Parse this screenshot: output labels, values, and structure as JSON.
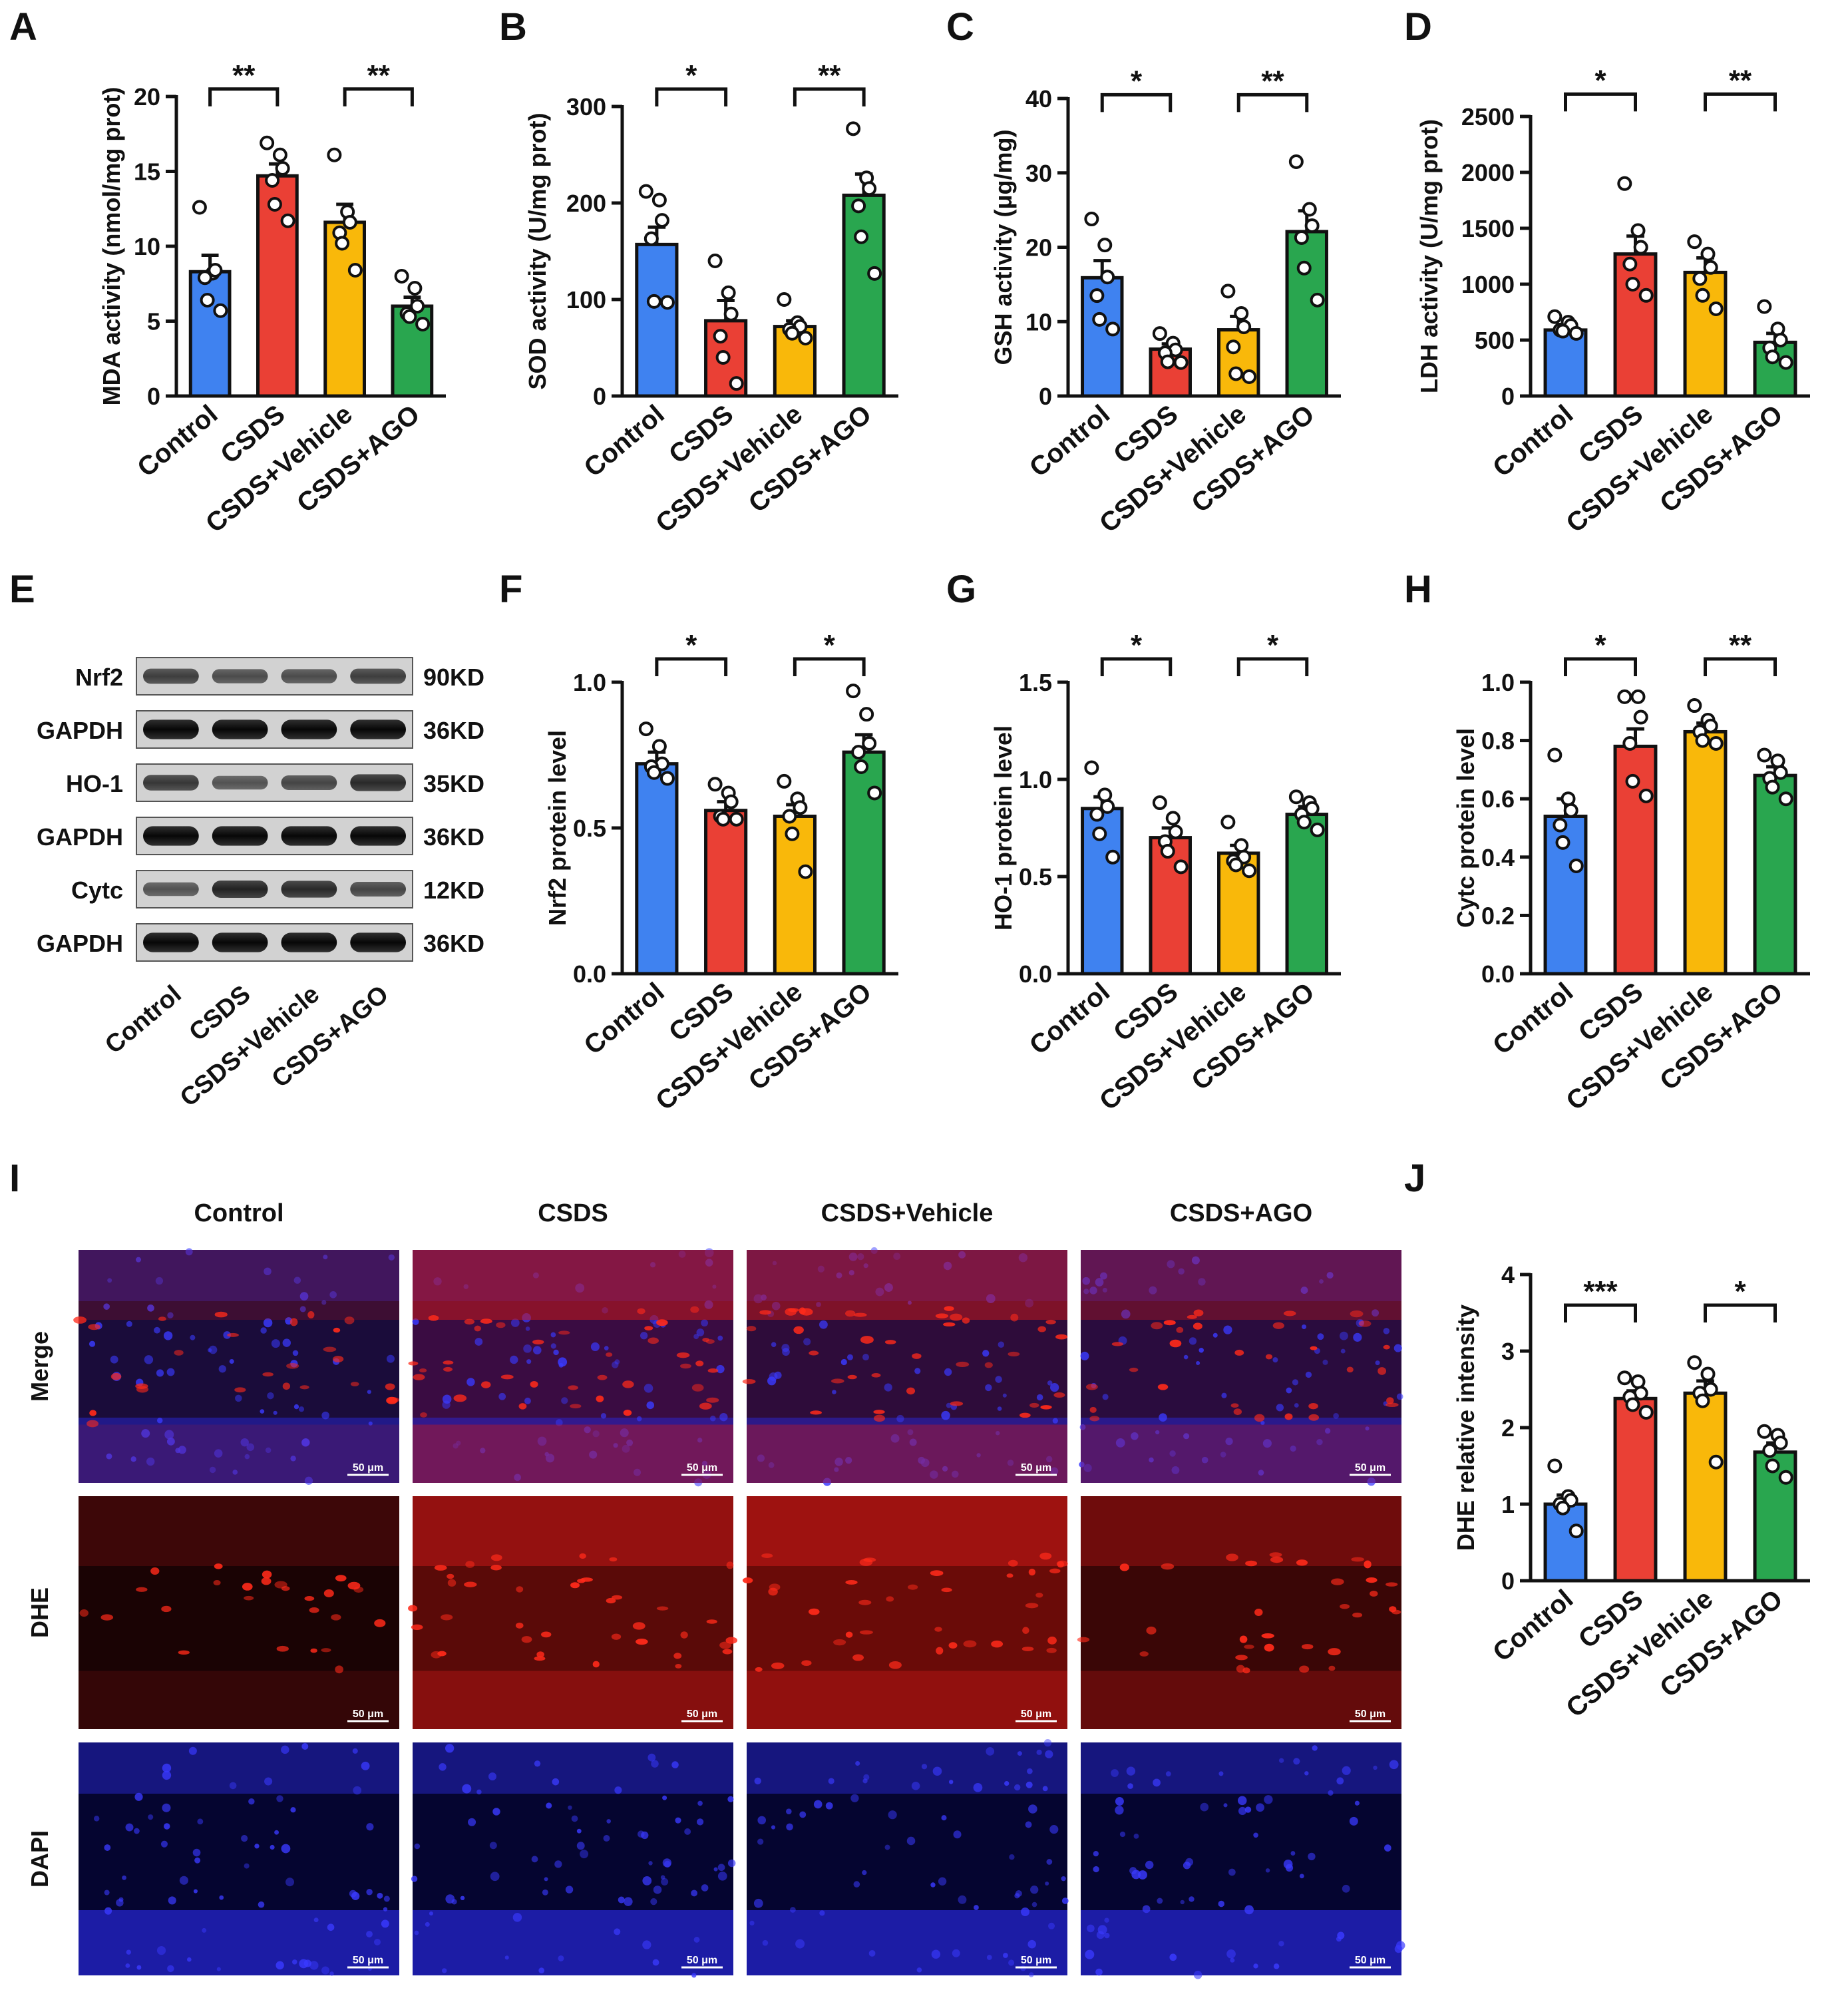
{
  "colors": {
    "control": "#3f82f0",
    "csds": "#ea4035",
    "vehicle": "#f9b80a",
    "ago": "#29a64f",
    "axis": "#111111"
  },
  "panel_letters": [
    "A",
    "B",
    "C",
    "D",
    "E",
    "F",
    "G",
    "H",
    "I",
    "J"
  ],
  "groups": [
    "Control",
    "CSDS",
    "CSDS+Vehicle",
    "CSDS+AGO"
  ],
  "western_blot": {
    "rows": [
      {
        "protein": "Nrf2",
        "size": "90KD"
      },
      {
        "protein": "GAPDH",
        "size": "36KD"
      },
      {
        "protein": "HO-1",
        "size": "35KD"
      },
      {
        "protein": "GAPDH",
        "size": "36KD"
      },
      {
        "protein": "Cytc",
        "size": "12KD"
      },
      {
        "protein": "GAPDH",
        "size": "36KD"
      }
    ],
    "lanes": [
      "Control",
      "CSDS",
      "CSDS+Vehicle",
      "CSDS+AGO"
    ]
  },
  "microscopy": {
    "columns": [
      "Control",
      "CSDS",
      "CSDS+Vehicle",
      "CSDS+AGO"
    ],
    "rows": [
      "Merge",
      "DHE",
      "DAPI"
    ],
    "scale_bar": "50 μm"
  },
  "chart_data": [
    {
      "panel": "A",
      "type": "bar",
      "categories": [
        "Control",
        "CSDS",
        "CSDS+Vehicle",
        "CSDS+AGO"
      ],
      "values": [
        8.3,
        14.7,
        11.6,
        6.0
      ],
      "errors": [
        1.1,
        0.8,
        1.2,
        0.6
      ],
      "points": [
        [
          12.6,
          8.2,
          8.4,
          7.9,
          6.4,
          5.7
        ],
        [
          16.9,
          16.1,
          15.2,
          14.4,
          12.8,
          11.7
        ],
        [
          16.1,
          12.3,
          11.6,
          10.9,
          10.2,
          8.4
        ],
        [
          8.0,
          7.2,
          6.0,
          5.5,
          5.3,
          4.8
        ]
      ],
      "ylabel": "MDA activity (nmol/mg prot)",
      "ylim": [
        0,
        20
      ],
      "yticks": [
        0,
        5,
        10,
        15,
        20
      ],
      "significance": [
        {
          "from": 0,
          "to": 1,
          "label": "**",
          "y": 20.5
        },
        {
          "from": 2,
          "to": 3,
          "label": "**",
          "y": 20.5
        }
      ]
    },
    {
      "panel": "B",
      "type": "bar",
      "categories": [
        "Control",
        "CSDS",
        "CSDS+Vehicle",
        "CSDS+AGO"
      ],
      "values": [
        157,
        78,
        72,
        208
      ],
      "errors": [
        18,
        21,
        6,
        22
      ],
      "points": [
        [
          212,
          203,
          182,
          163,
          98,
          97
        ],
        [
          140,
          107,
          85,
          62,
          40,
          13
        ],
        [
          100,
          76,
          72,
          69,
          65,
          60
        ],
        [
          277,
          226,
          215,
          197,
          165,
          127
        ]
      ],
      "ylabel": "SOD activity (U/mg prot)",
      "ylim": [
        0,
        300
      ],
      "yticks": [
        0,
        100,
        200,
        300
      ],
      "significance": [
        {
          "from": 0,
          "to": 1,
          "label": "*",
          "y": 318
        },
        {
          "from": 2,
          "to": 3,
          "label": "**",
          "y": 318
        }
      ]
    },
    {
      "panel": "C",
      "type": "bar",
      "categories": [
        "Control",
        "CSDS",
        "CSDS+Vehicle",
        "CSDS+AGO"
      ],
      "values": [
        15.9,
        6.3,
        8.9,
        22.1
      ],
      "errors": [
        2.3,
        0.7,
        1.8,
        2.8
      ],
      "points": [
        [
          23.8,
          20.3,
          16.0,
          13.5,
          10.3,
          9.0
        ],
        [
          8.4,
          7.1,
          6.2,
          5.8,
          4.6,
          4.5
        ],
        [
          14.1,
          11.1,
          9.3,
          6.6,
          3.0,
          2.6
        ],
        [
          31.5,
          25.1,
          22.9,
          21.3,
          17.2,
          12.9
        ]
      ],
      "ylabel": "GSH activity (μg/mg)",
      "ylim": [
        0,
        40
      ],
      "yticks": [
        0,
        10,
        20,
        30,
        40
      ],
      "significance": [
        {
          "from": 0,
          "to": 1,
          "label": "*",
          "y": 40.5
        },
        {
          "from": 2,
          "to": 3,
          "label": "**",
          "y": 40.5
        }
      ]
    },
    {
      "panel": "D",
      "type": "bar",
      "categories": [
        "Control",
        "CSDS",
        "CSDS+Vehicle",
        "CSDS+AGO"
      ],
      "values": [
        590,
        1270,
        1105,
        480
      ],
      "errors": [
        45,
        160,
        130,
        80
      ],
      "points": [
        [
          710,
          660,
          630,
          590,
          580,
          560
        ],
        [
          1900,
          1480,
          1330,
          1180,
          1000,
          900
        ],
        [
          1380,
          1270,
          1150,
          1050,
          900,
          780
        ],
        [
          800,
          600,
          500,
          430,
          350,
          300
        ]
      ],
      "ylabel": "LDH activity (U/mg prot)",
      "ylim": [
        0,
        2500
      ],
      "yticks": [
        0,
        500,
        1000,
        1500,
        2000,
        2500
      ],
      "significance": [
        {
          "from": 0,
          "to": 1,
          "label": "*",
          "y": 2700
        },
        {
          "from": 2,
          "to": 3,
          "label": "**",
          "y": 2700
        }
      ]
    },
    {
      "panel": "F",
      "type": "bar",
      "categories": [
        "Control",
        "CSDS",
        "CSDS+Vehicle",
        "CSDS+AGO"
      ],
      "values": [
        0.72,
        0.56,
        0.54,
        0.76
      ],
      "errors": [
        0.04,
        0.03,
        0.04,
        0.06
      ],
      "points": [
        [
          0.84,
          0.78,
          0.72,
          0.71,
          0.69,
          0.67
        ],
        [
          0.65,
          0.62,
          0.59,
          0.54,
          0.53,
          0.53
        ],
        [
          0.66,
          0.6,
          0.57,
          0.54,
          0.48,
          0.35
        ],
        [
          0.97,
          0.89,
          0.79,
          0.76,
          0.71,
          0.62
        ]
      ],
      "ylabel": "Nrf2 protein level",
      "ylim": [
        0,
        1.0
      ],
      "yticks": [
        0.0,
        0.5,
        1.0
      ],
      "significance": [
        {
          "from": 0,
          "to": 1,
          "label": "*",
          "y": 1.08
        },
        {
          "from": 2,
          "to": 3,
          "label": "*",
          "y": 1.08
        }
      ]
    },
    {
      "panel": "G",
      "type": "bar",
      "categories": [
        "Control",
        "CSDS",
        "CSDS+Vehicle",
        "CSDS+AGO"
      ],
      "values": [
        0.85,
        0.7,
        0.62,
        0.82
      ],
      "errors": [
        0.06,
        0.05,
        0.04,
        0.04
      ],
      "points": [
        [
          1.06,
          0.92,
          0.86,
          0.82,
          0.72,
          0.6
        ],
        [
          0.88,
          0.8,
          0.73,
          0.68,
          0.63,
          0.55
        ],
        [
          0.78,
          0.66,
          0.6,
          0.58,
          0.56,
          0.53
        ],
        [
          0.91,
          0.88,
          0.85,
          0.82,
          0.78,
          0.74
        ]
      ],
      "ylabel": "HO-1 protein level",
      "ylim": [
        0,
        1.5
      ],
      "yticks": [
        0.0,
        0.5,
        1.0,
        1.5
      ],
      "significance": [
        {
          "from": 0,
          "to": 1,
          "label": "*",
          "y": 1.62
        },
        {
          "from": 2,
          "to": 3,
          "label": "*",
          "y": 1.62
        }
      ]
    },
    {
      "panel": "H",
      "type": "bar",
      "categories": [
        "Control",
        "CSDS",
        "CSDS+Vehicle",
        "CSDS+AGO"
      ],
      "values": [
        0.54,
        0.78,
        0.83,
        0.68
      ],
      "errors": [
        0.06,
        0.06,
        0.03,
        0.03
      ],
      "points": [
        [
          0.75,
          0.6,
          0.56,
          0.51,
          0.45,
          0.37
        ],
        [
          0.95,
          0.95,
          0.88,
          0.79,
          0.66,
          0.61
        ],
        [
          0.92,
          0.87,
          0.85,
          0.83,
          0.8,
          0.79
        ],
        [
          0.75,
          0.73,
          0.69,
          0.67,
          0.64,
          0.6
        ]
      ],
      "ylabel": "Cytc protein level",
      "ylim": [
        0,
        1.0
      ],
      "yticks": [
        0.0,
        0.2,
        0.4,
        0.6,
        0.8,
        1.0
      ],
      "significance": [
        {
          "from": 0,
          "to": 1,
          "label": "*",
          "y": 1.08
        },
        {
          "from": 2,
          "to": 3,
          "label": "**",
          "y": 1.08
        }
      ]
    },
    {
      "panel": "J",
      "type": "bar",
      "categories": [
        "Control",
        "CSDS",
        "CSDS+Vehicle",
        "CSDS+AGO"
      ],
      "values": [
        1.0,
        2.38,
        2.45,
        1.68
      ],
      "errors": [
        0.12,
        0.1,
        0.16,
        0.12
      ],
      "points": [
        [
          1.5,
          1.1,
          1.05,
          1.0,
          0.95,
          0.65
        ],
        [
          2.65,
          2.6,
          2.45,
          2.4,
          2.3,
          2.2
        ],
        [
          2.85,
          2.7,
          2.5,
          2.45,
          2.35,
          1.55
        ],
        [
          1.95,
          1.9,
          1.8,
          1.7,
          1.5,
          1.35
        ]
      ],
      "ylabel": "DHE relative intensity",
      "ylim": [
        0,
        4
      ],
      "yticks": [
        0,
        1,
        2,
        3,
        4
      ],
      "significance": [
        {
          "from": 0,
          "to": 1,
          "label": "***",
          "y": 3.6
        },
        {
          "from": 2,
          "to": 3,
          "label": "*",
          "y": 3.6
        }
      ]
    }
  ]
}
